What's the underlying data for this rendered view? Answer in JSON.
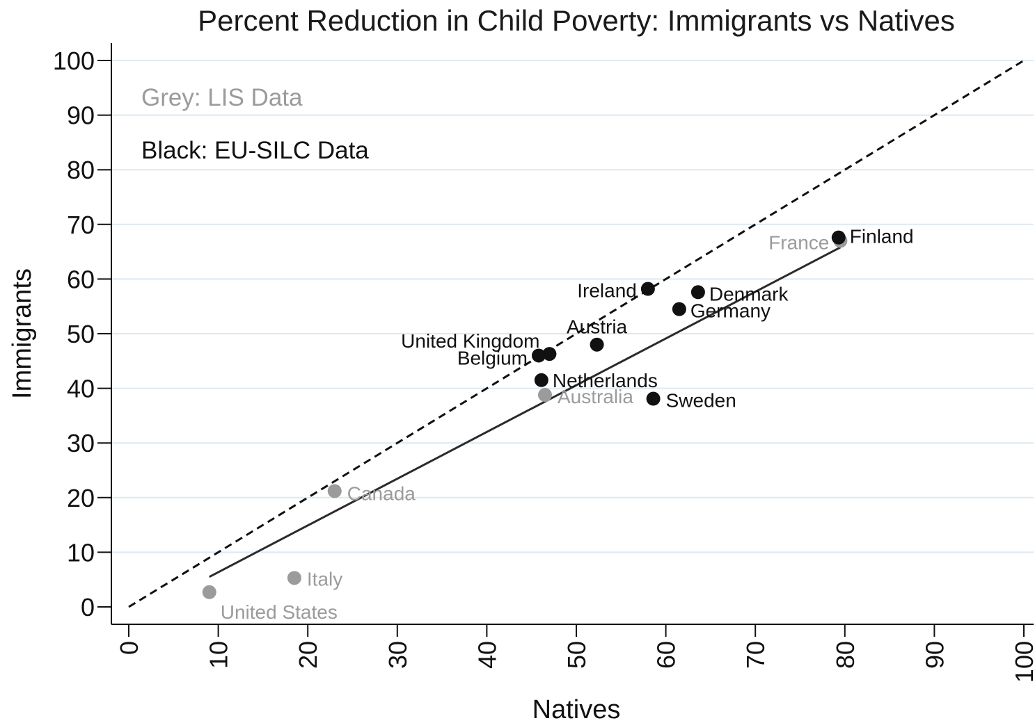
{
  "chart_data": {
    "type": "scatter",
    "title": "Percent Reduction in Child Poverty: Immigrants vs Natives",
    "xlabel": "Natives",
    "ylabel": "Immigrants",
    "xlim": [
      0,
      100
    ],
    "ylim": [
      0,
      100
    ],
    "x_ticks": [
      0,
      10,
      20,
      30,
      40,
      50,
      60,
      70,
      80,
      90,
      100
    ],
    "y_ticks": [
      0,
      10,
      20,
      30,
      40,
      50,
      60,
      70,
      80,
      90,
      100
    ],
    "grid": "horizontal",
    "annotations": [
      {
        "text": "Grey: LIS Data",
        "color": "#9b9b9b"
      },
      {
        "text": "Black: EU-SILC Data",
        "color": "#111111"
      }
    ],
    "colors": {
      "lis": "#9b9b9b",
      "eusilc": "#111111",
      "grid": "#dde9f2"
    },
    "series": [
      {
        "source": "LIS",
        "points": [
          {
            "label": "United States",
            "x": 9,
            "y": 2.7
          },
          {
            "label": "Italy",
            "x": 18.5,
            "y": 5.3
          },
          {
            "label": "Canada",
            "x": 23,
            "y": 21.2
          },
          {
            "label": "Australia",
            "x": 46.5,
            "y": 38.8
          },
          {
            "label": "France",
            "x": 79.5,
            "y": 67.0
          }
        ]
      },
      {
        "source": "EU-SILC",
        "points": [
          {
            "label": "Belgium",
            "x": 45.8,
            "y": 46.0
          },
          {
            "label": "United Kingdom",
            "x": 47.0,
            "y": 46.3
          },
          {
            "label": "Netherlands",
            "x": 46.1,
            "y": 41.5
          },
          {
            "label": "Austria",
            "x": 52.3,
            "y": 48.0
          },
          {
            "label": "Sweden",
            "x": 58.6,
            "y": 38.1
          },
          {
            "label": "Ireland",
            "x": 58.0,
            "y": 58.2
          },
          {
            "label": "Germany",
            "x": 61.5,
            "y": 54.5
          },
          {
            "label": "Denmark",
            "x": 63.6,
            "y": 57.6
          },
          {
            "label": "Finland",
            "x": 79.3,
            "y": 67.6
          }
        ]
      }
    ],
    "reference_lines": [
      {
        "name": "45-degree line",
        "style": "dashed",
        "x": [
          0,
          100
        ],
        "y": [
          0,
          100
        ]
      },
      {
        "name": "fitted line",
        "style": "solid",
        "x": [
          9,
          79.5
        ],
        "y": [
          5.5,
          65.8
        ]
      }
    ]
  }
}
